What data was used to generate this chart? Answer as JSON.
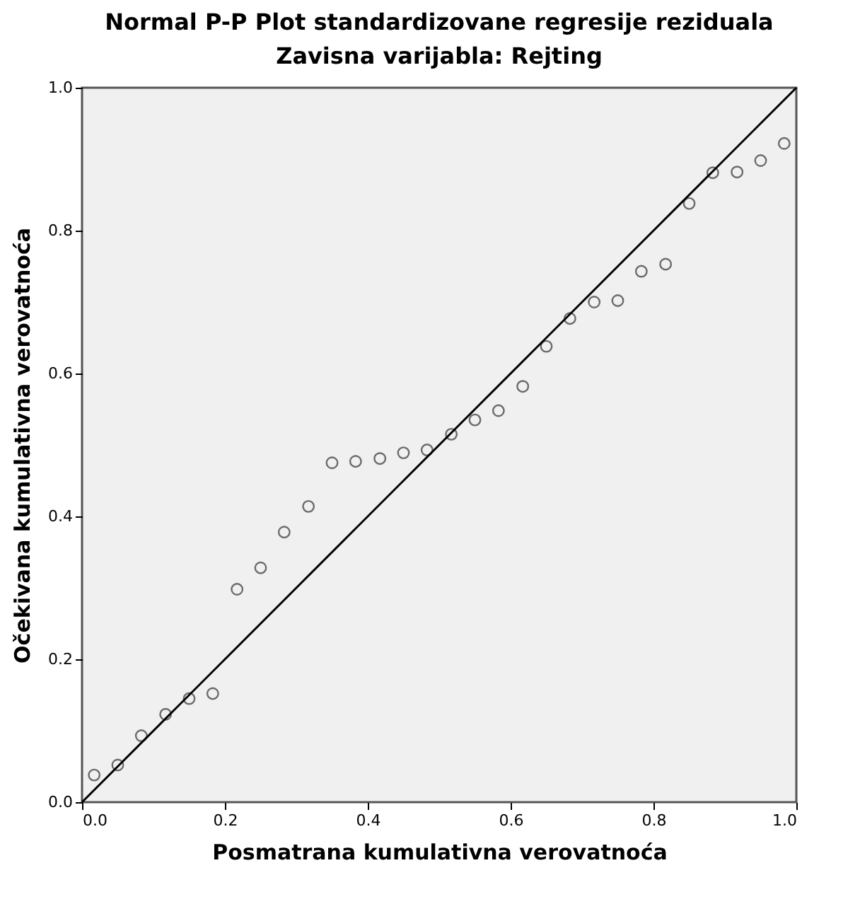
{
  "chart_data": {
    "type": "scatter",
    "title": "Normal P-P Plot standardizovane regresije reziduala",
    "subtitle": "Zavisna varijabla: Rejting",
    "xlabel": "Posmatrana kumulativna verovatnoća",
    "ylabel": "Očekivana kumulativna verovatnoća",
    "xlim": [
      0,
      1
    ],
    "ylim": [
      0,
      1
    ],
    "xticks": [
      {
        "value": 0,
        "label": "0.0"
      },
      {
        "value": 0.2,
        "label": "0.2"
      },
      {
        "value": 0.4,
        "label": "0.4"
      },
      {
        "value": 0.6,
        "label": "0.6"
      },
      {
        "value": 0.8,
        "label": "0.8"
      },
      {
        "value": 1,
        "label": "1.0"
      }
    ],
    "yticks": [
      {
        "value": 0,
        "label": "0.0"
      },
      {
        "value": 0.2,
        "label": "0.2"
      },
      {
        "value": 0.4,
        "label": "0.4"
      },
      {
        "value": 0.6,
        "label": "0.6"
      },
      {
        "value": 0.8,
        "label": "0.8"
      },
      {
        "value": 1,
        "label": "1.0"
      }
    ],
    "grid": false,
    "series": [
      {
        "marker": "circle",
        "color": "#333333",
        "x": [
          0.017,
          0.05,
          0.083,
          0.117,
          0.15,
          0.183,
          0.217,
          0.25,
          0.283,
          0.317,
          0.35,
          0.383,
          0.417,
          0.45,
          0.483,
          0.517,
          0.55,
          0.583,
          0.617,
          0.65,
          0.683,
          0.717,
          0.75,
          0.783,
          0.817,
          0.85,
          0.883,
          0.917,
          0.95,
          0.983
        ],
        "values": [
          0.038,
          0.052,
          0.093,
          0.123,
          0.145,
          0.152,
          0.298,
          0.328,
          0.378,
          0.414,
          0.475,
          0.477,
          0.481,
          0.489,
          0.493,
          0.515,
          0.535,
          0.548,
          0.582,
          0.638,
          0.677,
          0.7,
          0.702,
          0.743,
          0.753,
          0.838,
          0.881,
          0.882,
          0.898,
          0.922
        ]
      },
      {
        "type": "line",
        "color": "#000000",
        "x": [
          0,
          1
        ],
        "values": [
          0,
          1
        ],
        "line_style": "solid",
        "marker": "none"
      }
    ]
  }
}
